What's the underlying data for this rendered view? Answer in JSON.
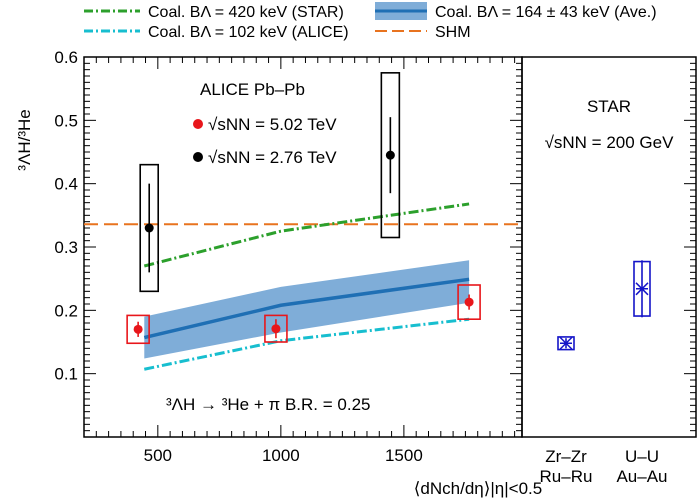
{
  "chart_data": {
    "type": "scatter",
    "title": "",
    "ylabel": "³ΛH/³He",
    "xlabel": "⟨dNch/dη⟩|η|<0.5",
    "xlim": [
      200,
      1980
    ],
    "ylim": [
      0.0,
      0.6
    ],
    "x_ticks": [
      500,
      1000,
      1500
    ],
    "y_ticks": [
      0.1,
      0.2,
      0.3,
      0.4,
      0.5,
      0.6
    ],
    "legend": [
      {
        "label": "Coal. BΛ = 420 keV (STAR)",
        "color": "#2ca02c",
        "style": "dash-dot"
      },
      {
        "label": "Coal. BΛ = 164 ± 43 keV (Ave.)",
        "color": "#1f6fb4",
        "style": "band"
      },
      {
        "label": "Coal. BΛ = 102 keV (ALICE)",
        "color": "#17becf",
        "style": "dash-dot"
      },
      {
        "label": "SHM",
        "color": "#e8731f",
        "style": "dashed"
      }
    ],
    "annotations": {
      "experiment": "ALICE Pb–Pb",
      "alice_502": "√sNN = 5.02 TeV",
      "alice_276": "√sNN = 2.76 TeV",
      "decay": "³ΛH → ³He + π   B.R. = 0.25",
      "star_title": "STAR",
      "star_energy": "√sNN = 200 GeV"
    },
    "series": [
      {
        "name": "√sNN = 5.02 TeV",
        "color": "#e8161b",
        "points": [
          {
            "x": 420,
            "y": 0.17,
            "stat": 0.012,
            "sys": 0.022
          },
          {
            "x": 980,
            "y": 0.171,
            "stat": 0.015,
            "sys": 0.021
          },
          {
            "x": 1765,
            "y": 0.213,
            "stat": 0.012,
            "sys": 0.027
          }
        ]
      },
      {
        "name": "√sNN = 2.76 TeV",
        "color": "#000000",
        "points": [
          {
            "x": 465,
            "y": 0.33,
            "stat": 0.07,
            "sys": 0.1
          },
          {
            "x": 1445,
            "y": 0.445,
            "stat": 0.06,
            "sys": 0.13
          }
        ]
      }
    ],
    "models": {
      "shm": {
        "y": 0.336
      },
      "star_420": {
        "x": [
          445,
          1000,
          1765
        ],
        "y": [
          0.27,
          0.325,
          0.368
        ]
      },
      "alice_102": {
        "x": [
          445,
          1000,
          1765
        ],
        "y": [
          0.107,
          0.152,
          0.186
        ]
      },
      "average_164": {
        "x": [
          445,
          1000,
          1765
        ],
        "y": [
          0.157,
          0.208,
          0.249
        ],
        "lower": [
          0.124,
          0.165,
          0.212
        ],
        "upper": [
          0.19,
          0.237,
          0.279
        ]
      }
    },
    "star_panel": {
      "categories": [
        "Zr–Zr\nRu–Ru",
        "U–U\nAu–Au"
      ],
      "color": "#1414c8",
      "points": [
        {
          "category": "Zr–Zr\nRu–Ru",
          "y": 0.148,
          "stat": 0.008,
          "sys": 0.01
        },
        {
          "category": "U–U\nAu–Au",
          "y": 0.234,
          "stat": 0.045,
          "sys": 0.043
        }
      ]
    }
  }
}
